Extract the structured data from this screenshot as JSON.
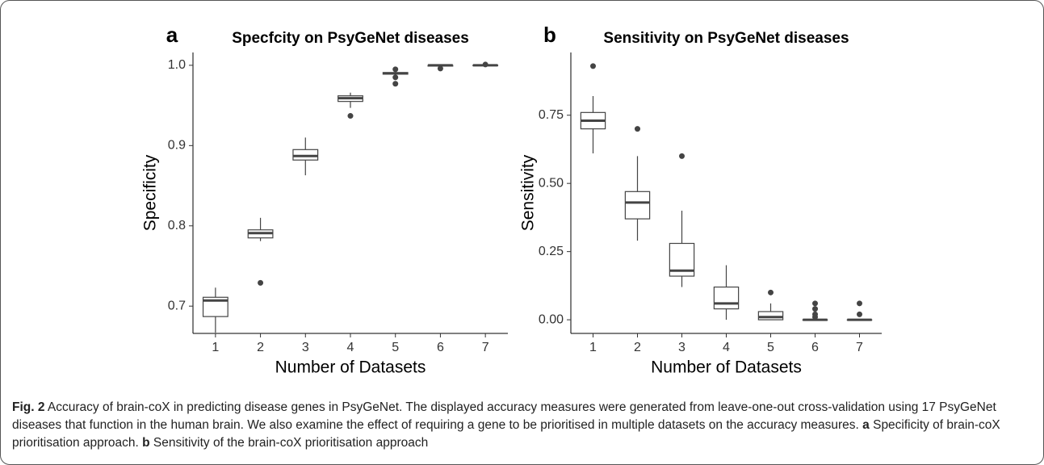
{
  "chart_data": [
    {
      "type": "box",
      "panel": "a",
      "title": "Specfcity on PsyGeNet diseases",
      "x_label": "Number of Datasets",
      "y_label": "Specificity",
      "categories": [
        "1",
        "2",
        "3",
        "4",
        "5",
        "6",
        "7"
      ],
      "ylim": [
        0.666,
        1.016
      ],
      "yticks": [
        {
          "value": 0.7,
          "label": "0.7"
        },
        {
          "value": 0.8,
          "label": "0.8"
        },
        {
          "value": 0.9,
          "label": "0.9"
        },
        {
          "value": 1.0,
          "label": "1.0"
        }
      ],
      "color": "#444444",
      "boxes": [
        {
          "low": 0.667,
          "q1": 0.687,
          "median": 0.707,
          "q3": 0.711,
          "high": 0.723,
          "outliers": []
        },
        {
          "low": 0.781,
          "q1": 0.785,
          "median": 0.791,
          "q3": 0.795,
          "high": 0.81,
          "outliers": [
            0.729
          ]
        },
        {
          "low": 0.863,
          "q1": 0.882,
          "median": 0.887,
          "q3": 0.895,
          "high": 0.91,
          "outliers": []
        },
        {
          "low": 0.947,
          "q1": 0.955,
          "median": 0.959,
          "q3": 0.962,
          "high": 0.966,
          "outliers": [
            0.937
          ]
        },
        {
          "low": 0.988,
          "q1": 0.989,
          "median": 0.99,
          "q3": 0.991,
          "high": 0.992,
          "outliers": [
            0.995,
            0.985,
            0.977
          ]
        },
        {
          "low": 0.999,
          "q1": 0.999,
          "median": 1.0,
          "q3": 1.0,
          "high": 1.0,
          "outliers": [
            0.996
          ]
        },
        {
          "low": 1.0,
          "q1": 1.0,
          "median": 1.0,
          "q3": 1.0,
          "high": 1.0,
          "outliers": [
            1.001
          ]
        }
      ]
    },
    {
      "type": "box",
      "panel": "b",
      "title": "Sensitivity on PsyGeNet diseases",
      "x_label": "Number of Datasets",
      "y_label": "Sensitivity",
      "categories": [
        "1",
        "2",
        "3",
        "4",
        "5",
        "6",
        "7"
      ],
      "ylim": [
        -0.05,
        0.98
      ],
      "yticks": [
        {
          "value": 0,
          "label": "0.00"
        },
        0.25,
        {
          "value": 0.5,
          "label": "0.50"
        },
        0.75
      ],
      "color": "#444444",
      "boxes": [
        {
          "low": 0.61,
          "q1": 0.7,
          "median": 0.73,
          "q3": 0.76,
          "high": 0.82,
          "outliers": [
            0.93
          ]
        },
        {
          "low": 0.29,
          "q1": 0.37,
          "median": 0.43,
          "q3": 0.47,
          "high": 0.6,
          "outliers": [
            0.7
          ]
        },
        {
          "low": 0.12,
          "q1": 0.16,
          "median": 0.18,
          "q3": 0.28,
          "high": 0.4,
          "outliers": [
            0.6
          ]
        },
        {
          "low": 0,
          "q1": 0.04,
          "median": 0.06,
          "q3": 0.12,
          "high": 0.2,
          "outliers": []
        },
        {
          "low": 0,
          "q1": 0,
          "median": 0.01,
          "q3": 0.03,
          "high": 0.06,
          "outliers": [
            0.1
          ]
        },
        {
          "low": 0,
          "q1": 0,
          "median": 0,
          "q3": 0,
          "high": 0,
          "outliers": [
            0.06,
            0.04,
            0.02,
            0.01
          ]
        },
        {
          "low": 0,
          "q1": 0,
          "median": 0,
          "q3": 0,
          "high": 0,
          "outliers": [
            0.06,
            0.02
          ]
        }
      ]
    }
  ],
  "caption": {
    "label": "Fig. 2",
    "text": " Accuracy of brain-coX in predicting disease genes in PsyGeNet. The displayed accuracy measures were generated from leave-one-out cross-validation using 17 PsyGeNet diseases that function in the human brain. We also examine the effect of requiring a gene to be prioritised in multiple datasets on the accuracy measures. ",
    "part_a": "a",
    "text_a": " Specificity of brain-coX prioritisation approach. ",
    "part_b": "b",
    "text_b": " Sensitivity of the brain-coX prioritisation approach"
  }
}
